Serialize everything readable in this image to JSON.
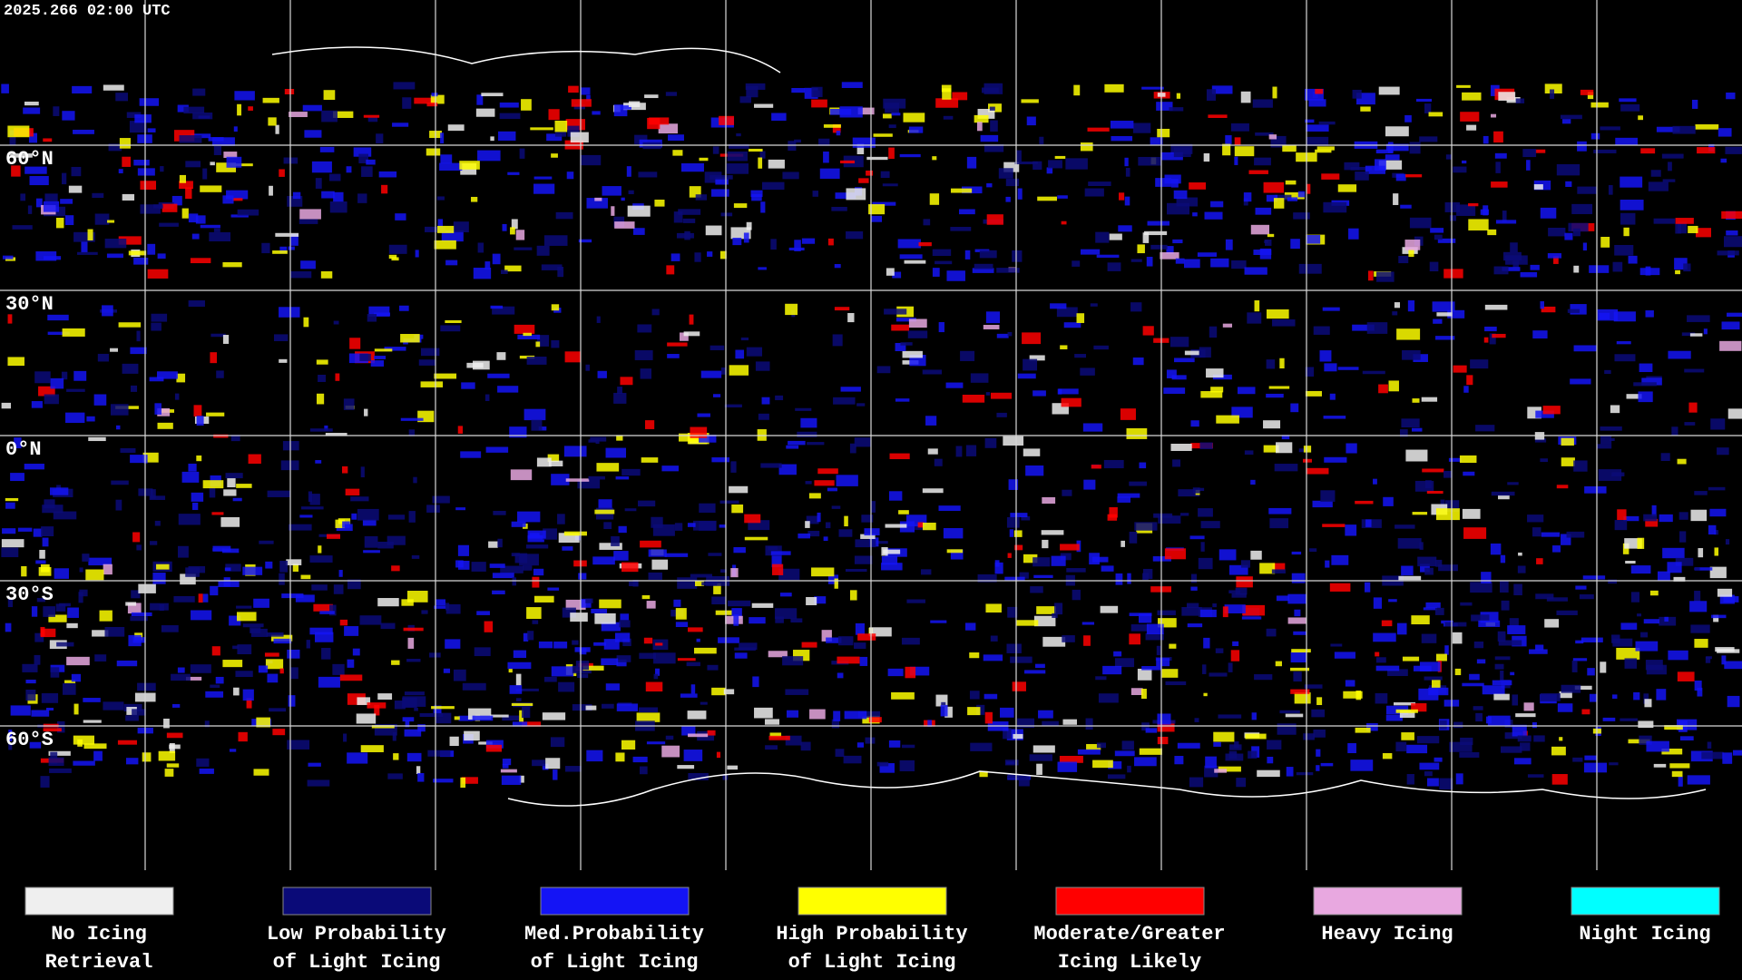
{
  "header": {
    "timestamp": "2025.266 02:00 UTC"
  },
  "map": {
    "latitude_labels": [
      "60°N",
      "30°N",
      "0°N",
      "30°S",
      "60°S"
    ]
  },
  "legend": [
    {
      "lines": [
        "No Icing",
        "Retrieval"
      ],
      "color": "#efefef"
    },
    {
      "lines": [
        "Low Probability",
        "of Light Icing"
      ],
      "color": "#0a0a78"
    },
    {
      "lines": [
        "Med.Probability",
        "of Light Icing"
      ],
      "color": "#1414f5"
    },
    {
      "lines": [
        "High Probability",
        "of Light Icing"
      ],
      "color": "#ffff00"
    },
    {
      "lines": [
        "Moderate/Greater",
        "Icing Likely"
      ],
      "color": "#ff0000"
    },
    {
      "lines": [
        "Heavy Icing"
      ],
      "color": "#e8a8e0"
    },
    {
      "lines": [
        "Night Icing"
      ],
      "color": "#00ffff"
    }
  ]
}
